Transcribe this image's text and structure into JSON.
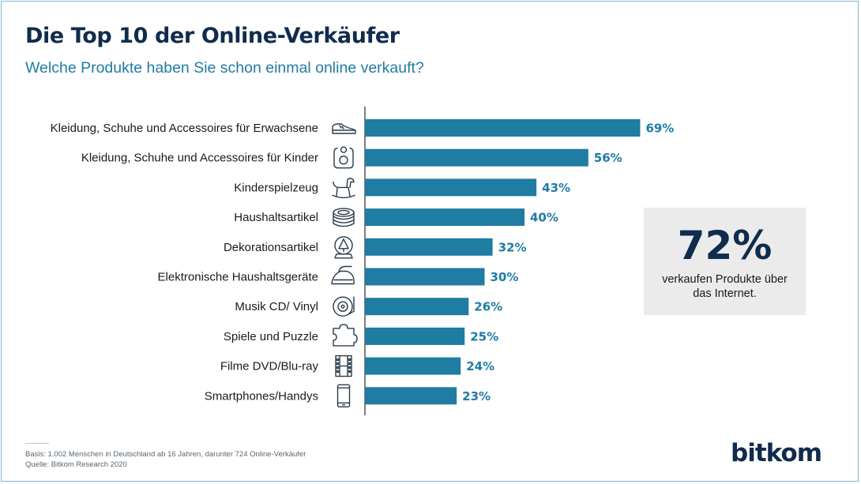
{
  "header": {
    "title": "Die Top 10 der Online-Verkäufer",
    "subtitle": "Welche Produkte haben Sie schon einmal online verkauft?"
  },
  "chart_data": {
    "type": "bar",
    "orientation": "horizontal",
    "categories": [
      "Kleidung, Schuhe und Accessoires für Erwachsene",
      "Kleidung, Schuhe und Accessoires für Kinder",
      "Kinderspielzeug",
      "Haushaltsartikel",
      "Dekorationsartikel",
      "Elektronische Haushaltsgeräte",
      "Musik CD/ Vinyl",
      "Spiele und Puzzle",
      "Filme DVD/Blu-ray",
      "Smartphones/Handys"
    ],
    "values": [
      69,
      56,
      43,
      40,
      32,
      30,
      26,
      25,
      24,
      23
    ],
    "value_labels": [
      "69%",
      "56%",
      "43%",
      "40%",
      "32%",
      "30%",
      "26%",
      "25%",
      "24%",
      "23%"
    ],
    "icons": [
      "sneaker-icon",
      "baby-bib-icon",
      "rocking-horse-icon",
      "plate-stack-icon",
      "snow-globe-icon",
      "iron-icon",
      "vinyl-record-icon",
      "puzzle-piece-icon",
      "film-strip-icon",
      "smartphone-icon"
    ],
    "xlim": [
      0,
      100
    ],
    "grid": false,
    "bar_color": "#1f7ca3"
  },
  "callout": {
    "value": "72%",
    "text": "verkaufen Produkte über das Internet."
  },
  "footer": {
    "basis": "Basis: 1.002 Menschen in Deutschland ab 16 Jahren, darunter 724 Online-Verkäufer",
    "source": "Quelle: Bitkom Research 2020"
  },
  "brand": {
    "logo": "bitkom"
  },
  "colors": {
    "accent": "#1f7ca3",
    "title": "#102c4c",
    "callout_bg": "#ebebeb"
  }
}
